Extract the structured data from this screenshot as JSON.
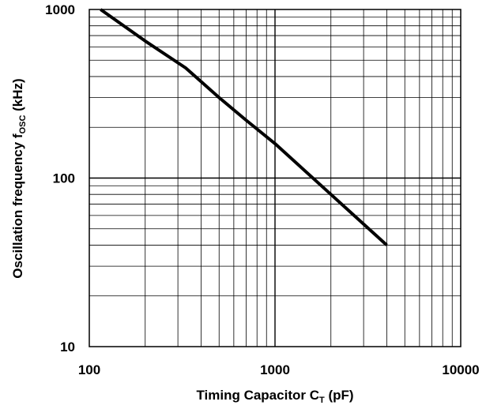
{
  "chart_data": {
    "type": "line",
    "title_fragment": "(… … , … …)",
    "xlabel": {
      "main": "Timing Capacitor  C",
      "sub": "T",
      "unit": "  (pF)"
    },
    "ylabel": {
      "main": "Oscillation frequency  f",
      "sub": "OSC",
      "unit": "  (kHz)"
    },
    "x_scale": "log",
    "y_scale": "log",
    "xlim": [
      100,
      10000
    ],
    "ylim": [
      10,
      1000
    ],
    "x_ticks": [
      {
        "value": 100,
        "label": "100"
      },
      {
        "value": 1000,
        "label": "1000"
      },
      {
        "value": 10000,
        "label": "10000"
      }
    ],
    "y_ticks": [
      {
        "value": 10,
        "label": "10"
      },
      {
        "value": 100,
        "label": "100"
      },
      {
        "value": 1000,
        "label": "1000"
      }
    ],
    "grid": true,
    "series": [
      {
        "color": "#000000",
        "x": [
          115,
          200,
          330,
          500,
          700,
          1000,
          2000,
          4000
        ],
        "y": [
          1000,
          650,
          450,
          300,
          220,
          160,
          80,
          40
        ]
      }
    ]
  }
}
